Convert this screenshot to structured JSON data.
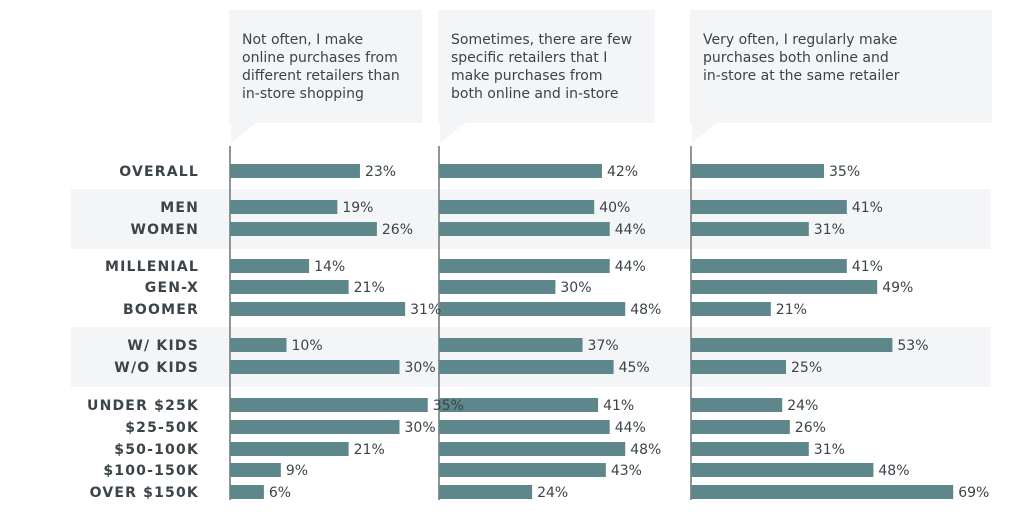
{
  "chart_data": {
    "type": "bar",
    "orientation": "horizontal",
    "categories": [
      "OVERALL",
      "MEN",
      "WOMEN",
      "MILLENIAL",
      "GEN-X",
      "BOOMER",
      "W/ KIDS",
      "W/O KIDS",
      "UNDER $25K",
      "$25-50K",
      "$50-100K",
      "$100-150K",
      "OVER $150K"
    ],
    "series": [
      {
        "header_lines": [
          "Not often, I make",
          "online purchases from",
          "different retailers than",
          "in-store shopping"
        ],
        "values": [
          23,
          19,
          26,
          14,
          21,
          31,
          10,
          30,
          35,
          30,
          21,
          9,
          6
        ]
      },
      {
        "header_lines": [
          "Sometimes, there are few",
          "specific retailers that I",
          "make purchases from",
          "both online and in-store"
        ],
        "values": [
          42,
          40,
          44,
          44,
          30,
          48,
          37,
          45,
          41,
          44,
          48,
          43,
          24
        ]
      },
      {
        "header_lines": [
          "Very often, I regularly make",
          "purchases both online and",
          "in-store at the same retailer"
        ],
        "values": [
          35,
          41,
          31,
          41,
          49,
          21,
          53,
          25,
          24,
          26,
          31,
          48,
          69
        ]
      }
    ],
    "value_suffix": "%",
    "groups": [
      [
        "OVERALL"
      ],
      [
        "MEN",
        "WOMEN"
      ],
      [
        "MILLENIAL",
        "GEN-X",
        "BOOMER"
      ],
      [
        "W/ KIDS",
        "W/O KIDS"
      ],
      [
        "UNDER $25K",
        "$25-50K",
        "$50-100K",
        "$100-150K",
        "OVER $150K"
      ]
    ],
    "shaded_groups": [
      1,
      3
    ],
    "grid": false,
    "legend": "none",
    "colors": {
      "bar": "#5d878b",
      "band": "#f4f5f6",
      "axis": "#8f9599",
      "text": "#3b4449"
    }
  }
}
